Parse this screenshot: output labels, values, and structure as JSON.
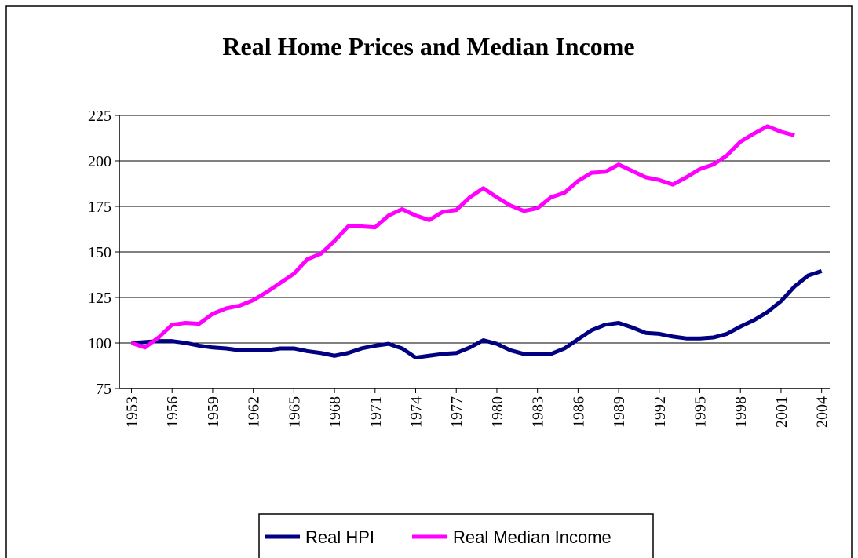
{
  "chart_data": {
    "type": "line",
    "title": "Real Home Prices and Median Income",
    "x": [
      1953,
      1954,
      1955,
      1956,
      1957,
      1958,
      1959,
      1960,
      1961,
      1962,
      1963,
      1964,
      1965,
      1966,
      1967,
      1968,
      1969,
      1970,
      1971,
      1972,
      1973,
      1974,
      1975,
      1976,
      1977,
      1978,
      1979,
      1980,
      1981,
      1982,
      1983,
      1984,
      1985,
      1986,
      1987,
      1988,
      1989,
      1990,
      1991,
      1992,
      1993,
      1994,
      1995,
      1996,
      1997,
      1998,
      1999,
      2000,
      2001,
      2002,
      2003,
      2004
    ],
    "series": [
      {
        "name": "Real HPI",
        "color": "#000080",
        "values": [
          100,
          100.5,
          101,
          101,
          100,
          98.5,
          97.5,
          97,
          96,
          96,
          96,
          97,
          97,
          95.5,
          94.5,
          93,
          94.5,
          97,
          98.5,
          99.5,
          97,
          92,
          93,
          94,
          94.5,
          97.5,
          101.5,
          99.5,
          96,
          94,
          94,
          94,
          97,
          102,
          107,
          110,
          111,
          108.5,
          105.5,
          105,
          103.5,
          102.5,
          102.5,
          103,
          105,
          109,
          112.5,
          117,
          123,
          131,
          137,
          139.5
        ]
      },
      {
        "name": "Real Median Income",
        "color": "#ff00ff",
        "values": [
          100,
          97.5,
          103,
          110,
          111,
          110.5,
          116,
          119,
          120.5,
          123.5,
          128,
          133,
          138,
          146,
          149,
          156,
          164,
          164,
          163.5,
          170,
          173.5,
          170,
          167.5,
          172,
          173,
          180,
          185,
          180,
          175.5,
          172.5,
          174,
          180,
          182.5,
          189,
          193.5,
          194,
          198,
          194.5,
          191,
          189.5,
          187,
          191,
          195.5,
          198,
          203,
          210.5,
          215,
          219,
          216,
          214,
          null,
          null
        ]
      }
    ],
    "xlim": [
      1952.1,
      2004.6
    ],
    "xticks": [
      1953,
      1956,
      1959,
      1962,
      1965,
      1968,
      1971,
      1974,
      1977,
      1980,
      1983,
      1986,
      1989,
      1992,
      1995,
      1998,
      2001,
      2004
    ],
    "ylim": [
      75,
      225
    ],
    "yticks": [
      75,
      100,
      125,
      150,
      175,
      200,
      225
    ],
    "grid": true
  }
}
